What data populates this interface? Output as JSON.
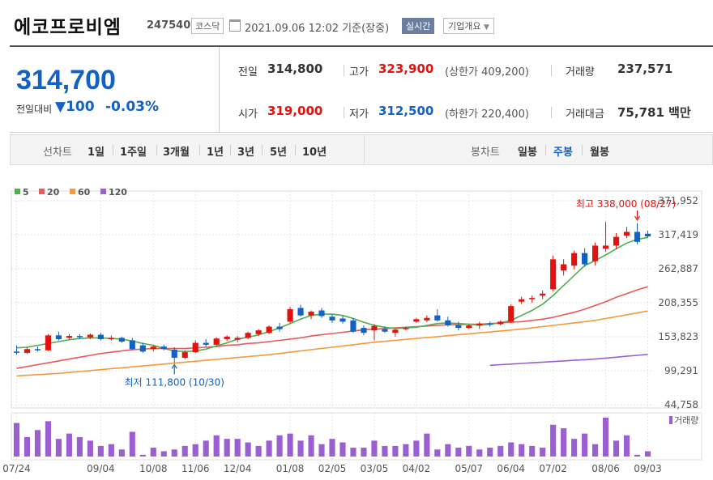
{
  "header": {
    "title": "에코프로비엠",
    "code": "247540",
    "market": "코스닥",
    "datetime": "2021.09.06 12:02",
    "basis": "기준(장중)",
    "realtime": "실시간",
    "company_info": "기업개요"
  },
  "quote": {
    "price": "314,700",
    "change_label": "전일대비",
    "change": "▼100",
    "change_pct": "-0.03%",
    "prev_label": "전일",
    "prev": "314,800",
    "high_label": "고가",
    "high": "323,900",
    "upper_limit": "(상한가 409,200)",
    "volume_label": "거래량",
    "volume": "237,571",
    "open_label": "시가",
    "open": "319,000",
    "low_label": "저가",
    "low": "312,500",
    "lower_limit": "(하한가 220,400)",
    "amount_label": "거래대금",
    "amount": "75,781",
    "amount_unit": "백만"
  },
  "toolbar": {
    "line_label": "선차트",
    "periods": [
      "1일",
      "1주일",
      "3개월",
      "1년",
      "3년",
      "5년",
      "10년"
    ],
    "candle_label": "봉차트",
    "candles": [
      "일봉",
      "주봉",
      "월봉"
    ],
    "active_candle": "주봉"
  },
  "colors": {
    "up": "#e3120e",
    "down": "#1261c4",
    "ma5": "#4caf50",
    "ma20": "#e85a5a",
    "ma60": "#f39a3d",
    "ma120": "#9c5fd1",
    "volume": "#9c5fd1"
  },
  "chart_data": {
    "type": "candlestick",
    "legend": [
      "5",
      "20",
      "60",
      "120"
    ],
    "y_ticks": [
      "371,952",
      "317,419",
      "262,887",
      "208,355",
      "153,823",
      "99,291",
      "44,758"
    ],
    "ylim": [
      44758,
      371952
    ],
    "x_ticks": [
      "07/24",
      "09/04",
      "10/08",
      "11/06",
      "12/04",
      "01/08",
      "02/05",
      "03/05",
      "04/02",
      "05/07",
      "06/04",
      "07/02",
      "08/06",
      "09/03"
    ],
    "x_tick_index": [
      0,
      8,
      13,
      17,
      21,
      26,
      30,
      34,
      38,
      43,
      47,
      51,
      56,
      60
    ],
    "max_annotation": "최고 338,000 (08/27)",
    "max_index": 59,
    "min_annotation": "최저 111,800 (10/30)",
    "min_index": 15,
    "volume_label": "거래량",
    "candles": [
      [
        130000,
        140000,
        125000,
        128000
      ],
      [
        128000,
        137000,
        126000,
        134000
      ],
      [
        134000,
        138000,
        130000,
        132000
      ],
      [
        132000,
        158000,
        131000,
        156000
      ],
      [
        156000,
        162000,
        148000,
        150000
      ],
      [
        152000,
        158000,
        150000,
        155000
      ],
      [
        155000,
        158000,
        150000,
        153000
      ],
      [
        153000,
        159000,
        150000,
        157000
      ],
      [
        157000,
        160000,
        148000,
        150000
      ],
      [
        150000,
        156000,
        148000,
        152000
      ],
      [
        152000,
        154000,
        144000,
        146000
      ],
      [
        148000,
        152000,
        132000,
        134000
      ],
      [
        140000,
        144000,
        128000,
        130000
      ],
      [
        134000,
        140000,
        130000,
        138000
      ],
      [
        138000,
        141000,
        132000,
        134000
      ],
      [
        133000,
        137000,
        111800,
        120000
      ],
      [
        120000,
        132000,
        118000,
        129000
      ],
      [
        129000,
        148000,
        128000,
        144000
      ],
      [
        144000,
        150000,
        138000,
        141000
      ],
      [
        141000,
        153000,
        140000,
        151000
      ],
      [
        150000,
        156000,
        147000,
        154000
      ],
      [
        149000,
        155000,
        145000,
        152000
      ],
      [
        152000,
        162000,
        150000,
        160000
      ],
      [
        158000,
        166000,
        155000,
        164000
      ],
      [
        160000,
        172000,
        158000,
        170000
      ],
      [
        170000,
        176000,
        162000,
        166000
      ],
      [
        178000,
        202000,
        176000,
        198000
      ],
      [
        200000,
        205000,
        186000,
        188000
      ],
      [
        188000,
        196000,
        182000,
        194000
      ],
      [
        196000,
        200000,
        184000,
        187000
      ],
      [
        186000,
        190000,
        176000,
        180000
      ],
      [
        183000,
        188000,
        175000,
        178000
      ],
      [
        180000,
        184000,
        160000,
        162000
      ],
      [
        168000,
        172000,
        156000,
        160000
      ],
      [
        164000,
        174000,
        148000,
        171000
      ],
      [
        166000,
        170000,
        160000,
        162000
      ],
      [
        160000,
        166000,
        154000,
        165000
      ],
      [
        166000,
        170000,
        164000,
        168000
      ],
      [
        178000,
        184000,
        176000,
        182000
      ],
      [
        180000,
        188000,
        177000,
        184000
      ],
      [
        188000,
        198000,
        178000,
        180000
      ],
      [
        180000,
        186000,
        170000,
        172000
      ],
      [
        172000,
        178000,
        164000,
        168000
      ],
      [
        168000,
        174000,
        166000,
        172000
      ],
      [
        172000,
        178000,
        166000,
        175000
      ],
      [
        175000,
        178000,
        170000,
        174000
      ],
      [
        174000,
        180000,
        172000,
        178000
      ],
      [
        178000,
        206000,
        176000,
        203000
      ],
      [
        210000,
        218000,
        206000,
        214000
      ],
      [
        214000,
        220000,
        208000,
        216000
      ],
      [
        220000,
        228000,
        214000,
        223000
      ],
      [
        230000,
        284000,
        226000,
        278000
      ],
      [
        260000,
        278000,
        252000,
        270000
      ],
      [
        268000,
        292000,
        262000,
        288000
      ],
      [
        288000,
        296000,
        266000,
        270000
      ],
      [
        275000,
        305000,
        268000,
        300000
      ],
      [
        295000,
        338000,
        290000,
        300000
      ],
      [
        300000,
        320000,
        294000,
        314000
      ],
      [
        316000,
        330000,
        312000,
        322000
      ],
      [
        322000,
        336000,
        302000,
        306000
      ],
      [
        319000,
        323900,
        312500,
        314700
      ]
    ],
    "ma5": [
      136000,
      137000,
      140000,
      143000,
      146000,
      149000,
      151000,
      152000,
      152000,
      151000,
      150000,
      147000,
      143000,
      140000,
      135000,
      131000,
      130000,
      131000,
      134000,
      139000,
      144000,
      150000,
      153000,
      157000,
      162000,
      168000,
      175000,
      182000,
      188000,
      190000,
      190000,
      188000,
      183000,
      177000,
      172000,
      169000,
      167000,
      168000,
      169000,
      172000,
      175000,
      176000,
      175000,
      174000,
      172000,
      174000,
      176000,
      180000,
      188000,
      196000,
      206000,
      220000,
      236000,
      252000,
      268000,
      276000,
      285000,
      295000,
      304000,
      310000,
      313000
    ],
    "ma20": [
      103000,
      106000,
      109000,
      112000,
      115000,
      118000,
      121000,
      124000,
      127000,
      129000,
      131000,
      133000,
      134000,
      135000,
      135000,
      135000,
      135000,
      136000,
      137000,
      138000,
      140000,
      141000,
      143000,
      144000,
      146000,
      148000,
      150000,
      152000,
      155000,
      157000,
      159000,
      161000,
      163000,
      165000,
      166000,
      167000,
      168000,
      169000,
      170000,
      171000,
      172000,
      173000,
      173000,
      174000,
      174000,
      175000,
      176000,
      177000,
      178000,
      180000,
      182000,
      185000,
      189000,
      193000,
      198000,
      204000,
      210000,
      217000,
      223000,
      229000,
      234000
    ],
    "ma60": [
      91000,
      92000,
      93000,
      94000,
      95000,
      96500,
      98000,
      99500,
      101000,
      102500,
      104000,
      105500,
      107000,
      108500,
      110000,
      111500,
      113000,
      114500,
      116000,
      117500,
      119000,
      120500,
      122000,
      123500,
      125000,
      127000,
      129000,
      131000,
      133000,
      135000,
      137000,
      139000,
      141000,
      143000,
      145000,
      146500,
      148000,
      149500,
      151000,
      152500,
      154000,
      155500,
      157000,
      158500,
      160000,
      161500,
      163000,
      164500,
      166000,
      168000,
      170000,
      172000,
      174000,
      176000,
      178000,
      180000,
      183000,
      186000,
      189000,
      192000,
      195000
    ],
    "ma120_start": 45,
    "ma120": [
      108000,
      109000,
      110000,
      111000,
      112000,
      113000,
      114000,
      115000,
      116000,
      117000,
      118000,
      119500,
      121000,
      122500,
      124000,
      125500
    ],
    "volumes": [
      38,
      22,
      30,
      40,
      20,
      26,
      22,
      18,
      12,
      14,
      8,
      28,
      2,
      10,
      6,
      8,
      12,
      14,
      18,
      24,
      20,
      20,
      16,
      12,
      18,
      24,
      26,
      18,
      24,
      14,
      20,
      16,
      10,
      10,
      18,
      12,
      12,
      14,
      18,
      26,
      8,
      14,
      10,
      12,
      8,
      10,
      12,
      16,
      14,
      12,
      10,
      36,
      32,
      20,
      26,
      14,
      44,
      18,
      24,
      2,
      6
    ]
  }
}
